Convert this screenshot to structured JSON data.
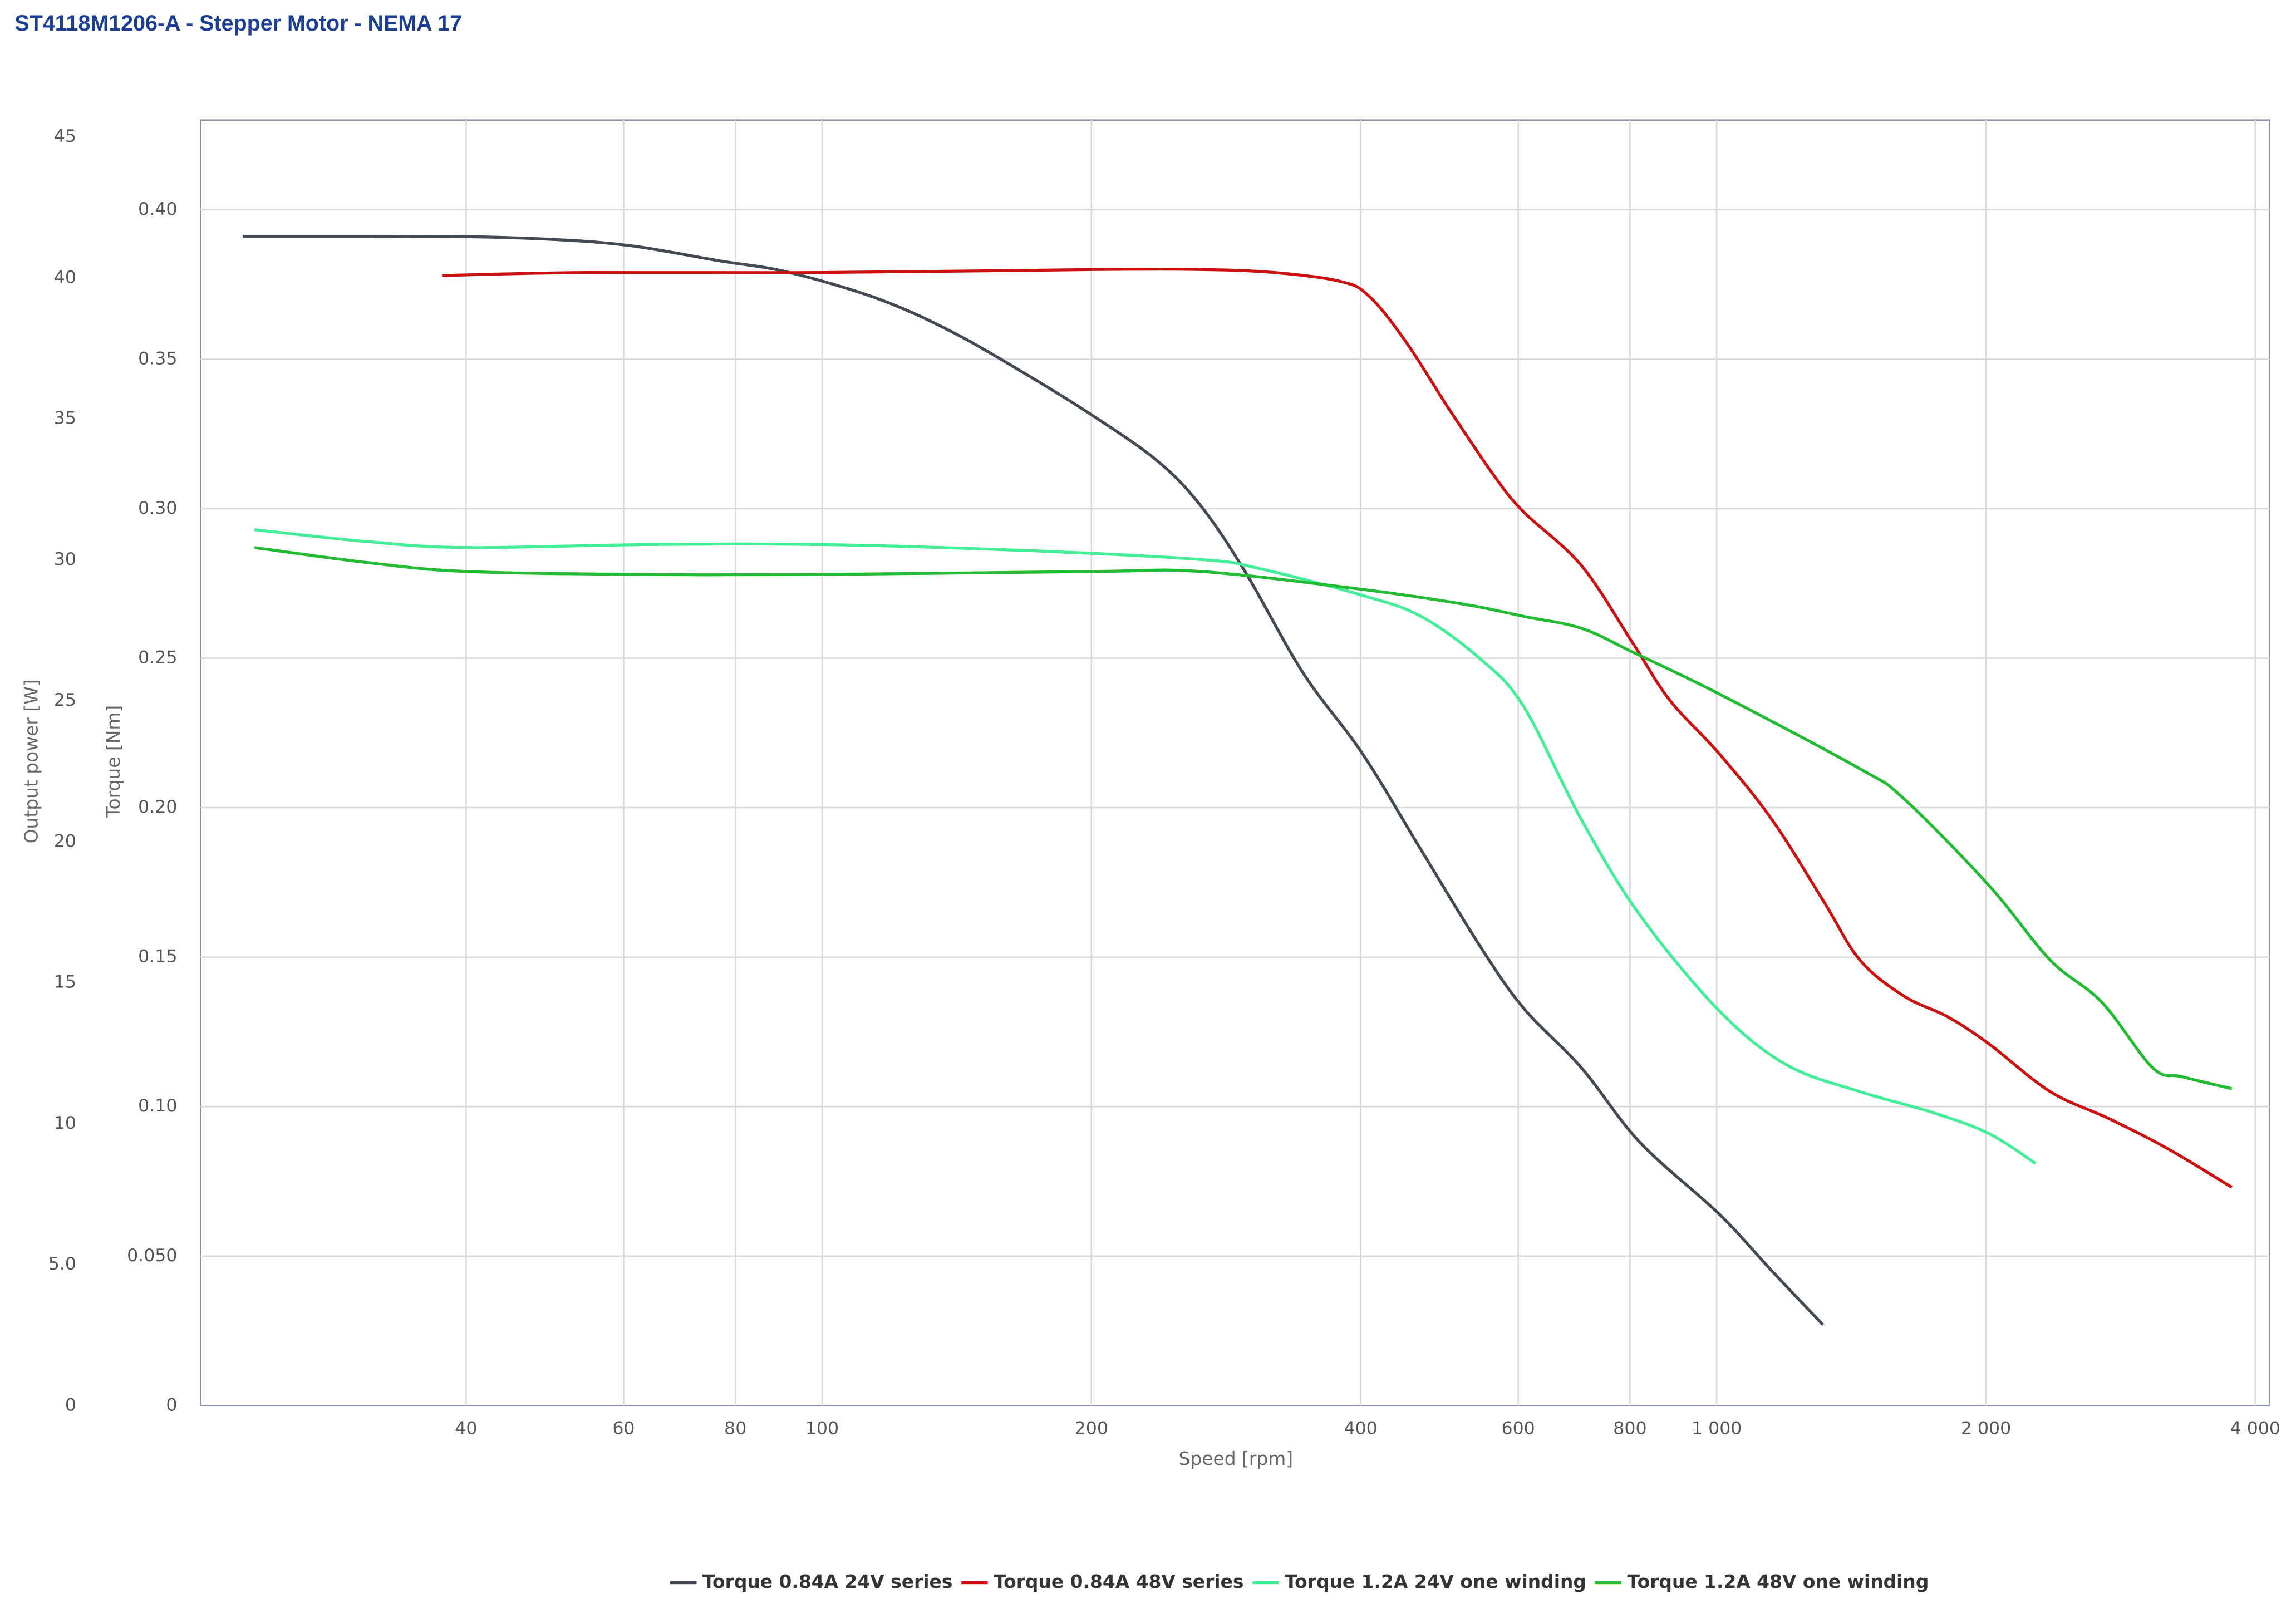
{
  "chart_data": {
    "type": "line",
    "title": "ST4118M1206-A - Stepper Motor - NEMA 17",
    "xlabel": "Speed [rpm]",
    "ylabel": "Torque [Nm]",
    "y2label": "Output power [W]",
    "xscale": "log",
    "grid": true,
    "legend": "bottom",
    "xlim": [
      20.2,
      4150
    ],
    "xticks": [
      40,
      60,
      80,
      100,
      200,
      400,
      600,
      800,
      {
        "value": 1000,
        "label": "1 000"
      },
      {
        "value": 2000,
        "label": "2 000"
      },
      {
        "value": 4000,
        "label": "4 000"
      }
    ],
    "ylim": [
      0,
      0.43
    ],
    "yticks": [
      0,
      {
        "value": 0.05,
        "label": "0.050"
      },
      {
        "value": 0.1,
        "label": "0.10"
      },
      0.15,
      {
        "value": 0.2,
        "label": "0.20"
      },
      0.25,
      {
        "value": 0.3,
        "label": "0.30"
      },
      0.35,
      {
        "value": 0.4,
        "label": "0.40"
      }
    ],
    "y2lim": [
      0,
      45.6
    ],
    "y2ticks": [
      0,
      {
        "value": 5,
        "label": "5.0"
      },
      10,
      15,
      20,
      25,
      30,
      35,
      40,
      45
    ],
    "series": [
      {
        "name": "Torque 0.84A 24V series",
        "color": "#434a54",
        "x": [
          22.5,
          31,
          40,
          50.5,
          61,
          76.5,
          92,
          116,
          140,
          169,
          201,
          237,
          265,
          297,
          345,
          402,
          467,
          543,
          608,
          706,
          821,
          1007,
          1153,
          1315
        ],
        "values": [
          0.391,
          0.391,
          0.391,
          0.39,
          0.388,
          0.383,
          0.379,
          0.37,
          0.359,
          0.345,
          0.331,
          0.316,
          0.301,
          0.279,
          0.245,
          0.218,
          0.186,
          0.154,
          0.133,
          0.113,
          0.088,
          0.064,
          0.045,
          0.027
        ]
      },
      {
        "name": "Torque 0.84A 48V series",
        "color": "#cc1111",
        "x": [
          37.6,
          54.5,
          100,
          201,
          265,
          320,
          380,
          409,
          449,
          503,
          564,
          608,
          706,
          806,
          886,
          1007,
          1153,
          1315,
          1446,
          1619,
          1813,
          2015,
          2360,
          2744,
          3190,
          3766
        ],
        "values": [
          0.378,
          0.379,
          0.379,
          0.38,
          0.38,
          0.379,
          0.376,
          0.371,
          0.356,
          0.333,
          0.311,
          0.299,
          0.281,
          0.255,
          0.236,
          0.218,
          0.196,
          0.169,
          0.149,
          0.137,
          0.13,
          0.121,
          0.105,
          0.096,
          0.086,
          0.073
        ]
      },
      {
        "name": "Torque 1.2A 24V one winding",
        "color": "#44ee99",
        "x": [
          23.2,
          31,
          40,
          63.3,
          100,
          169,
          265,
          308,
          402,
          467,
          543,
          608,
          706,
          821,
          1007,
          1197,
          1446,
          1745,
          2015,
          2272
        ],
        "values": [
          0.293,
          0.289,
          0.287,
          0.288,
          0.288,
          0.286,
          0.283,
          0.28,
          0.271,
          0.264,
          0.25,
          0.234,
          0.196,
          0.164,
          0.132,
          0.114,
          0.105,
          0.098,
          0.091,
          0.081
        ]
      },
      {
        "name": "Torque 1.2A 48V one winding",
        "color": "#22bb33",
        "x": [
          23.2,
          31,
          40,
          63.3,
          100,
          201,
          265,
          402,
          523,
          608,
          706,
          806,
          1007,
          1446,
          1619,
          2015,
          2360,
          2693,
          3072,
          3313,
          3766
        ],
        "values": [
          0.287,
          0.282,
          0.279,
          0.278,
          0.278,
          0.279,
          0.279,
          0.273,
          0.268,
          0.264,
          0.26,
          0.252,
          0.238,
          0.213,
          0.203,
          0.174,
          0.149,
          0.135,
          0.113,
          0.11,
          0.106
        ]
      }
    ]
  }
}
